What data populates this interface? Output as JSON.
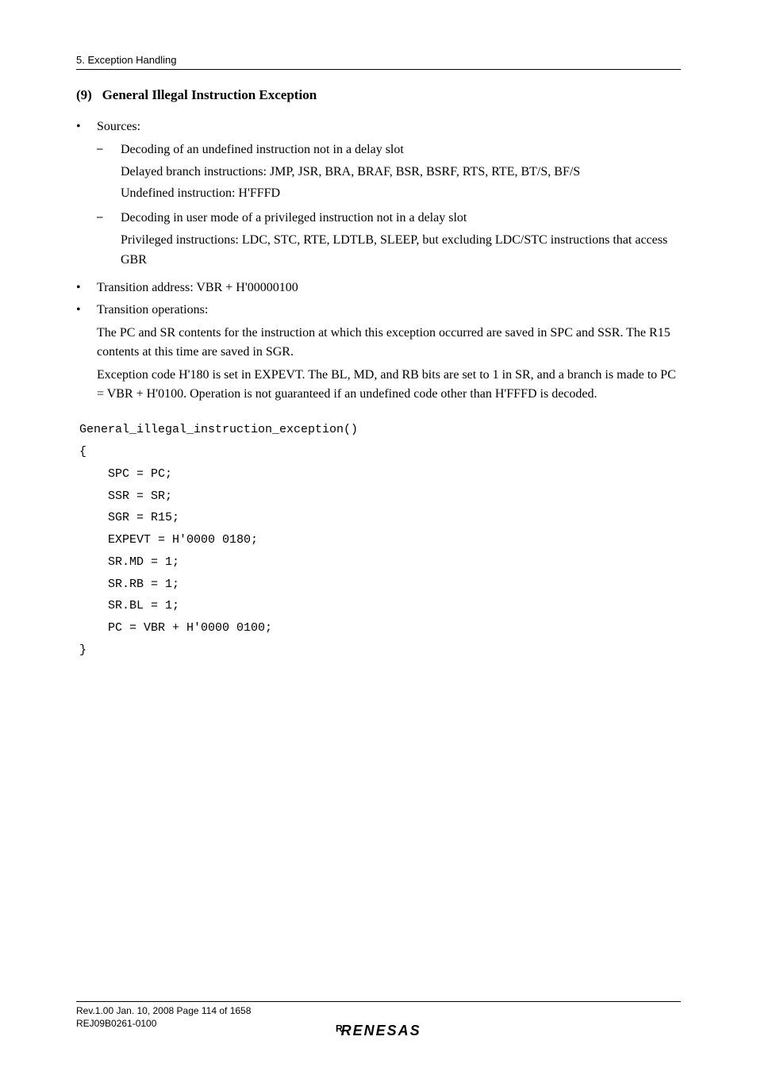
{
  "runningHead": "5.   Exception Handling",
  "section": {
    "number": "(9)",
    "title": "General Illegal Instruction Exception"
  },
  "bullets": [
    {
      "text": "Sources:",
      "subs": [
        {
          "lines": [
            "Decoding of an undefined instruction not in a delay slot",
            "Delayed branch instructions: JMP, JSR, BRA, BRAF, BSR, BSRF, RTS, RTE, BT/S, BF/S",
            "Undefined instruction: H'FFFD"
          ]
        },
        {
          "lines": [
            "Decoding in user mode of a privileged instruction not in a delay slot",
            "Privileged instructions: LDC, STC, RTE, LDTLB, SLEEP, but excluding LDC/STC instructions that access GBR"
          ]
        }
      ]
    },
    {
      "text": "Transition address: VBR + H'00000100"
    },
    {
      "text": "Transition operations:",
      "paras": [
        "The PC and SR contents for the instruction at which this exception occurred are saved in SPC and SSR. The R15 contents at this time are saved in SGR.",
        "Exception code H'180 is set in EXPEVT. The BL, MD, and RB bits are set to 1 in SR, and a branch is made to PC = VBR + H'0100. Operation is not guaranteed if an undefined code other than H'FFFD is decoded."
      ]
    }
  ],
  "code": "General_illegal_instruction_exception()\n{\n    SPC = PC;\n    SSR = SR;\n    SGR = R15;\n    EXPEVT = H'0000 0180;\n    SR.MD = 1;\n    SR.RB = 1;\n    SR.BL = 1;\n    PC = VBR + H'0000 0100;\n}",
  "footer": {
    "line1": "Rev.1.00  Jan. 10, 2008  Page 114 of 1658",
    "line2": "REJ09B0261-0100"
  },
  "logo": "RENESAS"
}
